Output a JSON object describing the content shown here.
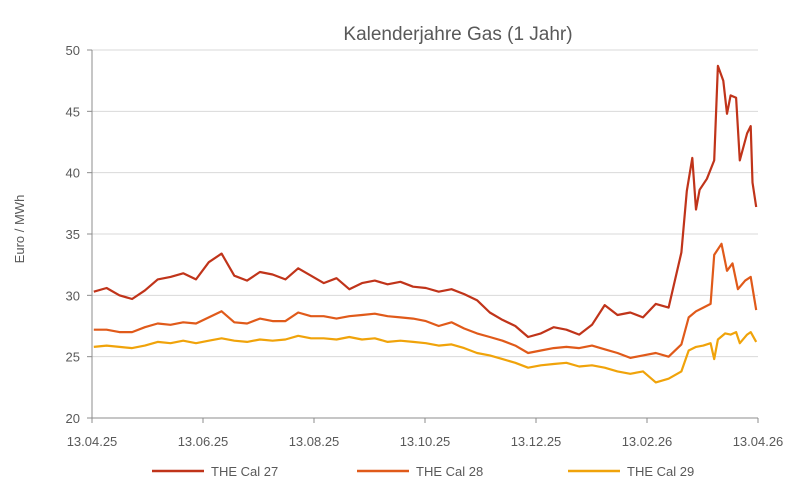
{
  "chart_data": {
    "type": "line",
    "title": "Kalenderjahre Gas (1 Jahr)",
    "xlabel": "",
    "ylabel": "Euro / MWh",
    "ylim": [
      20,
      50
    ],
    "yticks": [
      "20",
      "25",
      "30",
      "35",
      "40",
      "45",
      "50"
    ],
    "xlim": [
      "2025-04-13",
      "2026-04-13"
    ],
    "xticks": [
      "13.04.25",
      "13.06.25",
      "13.08.25",
      "13.10.25",
      "13.12.25",
      "13.02.26",
      "13.04.26"
    ],
    "grid": "horizontal",
    "legend_position": "bottom",
    "series": [
      {
        "name": "THE Cal 27",
        "color": "#c0341a",
        "points": [
          [
            "2025-04-14",
            30.3
          ],
          [
            "2025-04-21",
            30.6
          ],
          [
            "2025-04-28",
            30.0
          ],
          [
            "2025-05-05",
            29.7
          ],
          [
            "2025-05-12",
            30.4
          ],
          [
            "2025-05-19",
            31.3
          ],
          [
            "2025-05-26",
            31.5
          ],
          [
            "2025-06-02",
            31.8
          ],
          [
            "2025-06-09",
            31.3
          ],
          [
            "2025-06-16",
            32.7
          ],
          [
            "2025-06-23",
            33.4
          ],
          [
            "2025-06-30",
            31.6
          ],
          [
            "2025-07-07",
            31.2
          ],
          [
            "2025-07-14",
            31.9
          ],
          [
            "2025-07-21",
            31.7
          ],
          [
            "2025-07-28",
            31.3
          ],
          [
            "2025-08-04",
            32.2
          ],
          [
            "2025-08-11",
            31.6
          ],
          [
            "2025-08-18",
            31.0
          ],
          [
            "2025-08-25",
            31.4
          ],
          [
            "2025-09-01",
            30.5
          ],
          [
            "2025-09-08",
            31.0
          ],
          [
            "2025-09-15",
            31.2
          ],
          [
            "2025-09-22",
            30.9
          ],
          [
            "2025-09-29",
            31.1
          ],
          [
            "2025-10-06",
            30.7
          ],
          [
            "2025-10-13",
            30.6
          ],
          [
            "2025-10-20",
            30.3
          ],
          [
            "2025-10-27",
            30.5
          ],
          [
            "2025-11-03",
            30.1
          ],
          [
            "2025-11-10",
            29.6
          ],
          [
            "2025-11-17",
            28.6
          ],
          [
            "2025-11-24",
            28.0
          ],
          [
            "2025-12-01",
            27.5
          ],
          [
            "2025-12-08",
            26.6
          ],
          [
            "2025-12-15",
            26.9
          ],
          [
            "2025-12-22",
            27.4
          ],
          [
            "2025-12-29",
            27.2
          ],
          [
            "2026-01-05",
            26.8
          ],
          [
            "2026-01-12",
            27.6
          ],
          [
            "2026-01-19",
            29.2
          ],
          [
            "2026-01-26",
            28.4
          ],
          [
            "2026-02-02",
            28.6
          ],
          [
            "2026-02-09",
            28.2
          ],
          [
            "2026-02-16",
            29.3
          ],
          [
            "2026-02-23",
            29.0
          ],
          [
            "2026-03-02",
            33.5
          ],
          [
            "2026-03-05",
            38.5
          ],
          [
            "2026-03-08",
            41.2
          ],
          [
            "2026-03-10",
            37.0
          ],
          [
            "2026-03-12",
            38.6
          ],
          [
            "2026-03-16",
            39.5
          ],
          [
            "2026-03-20",
            41.0
          ],
          [
            "2026-03-22",
            48.7
          ],
          [
            "2026-03-25",
            47.5
          ],
          [
            "2026-03-27",
            44.8
          ],
          [
            "2026-03-29",
            46.3
          ],
          [
            "2026-04-01",
            46.1
          ],
          [
            "2026-04-03",
            41.0
          ],
          [
            "2026-04-07",
            43.2
          ],
          [
            "2026-04-09",
            43.8
          ],
          [
            "2026-04-10",
            39.2
          ],
          [
            "2026-04-12",
            37.2
          ]
        ]
      },
      {
        "name": "THE Cal 28",
        "color": "#e05a1a",
        "points": [
          [
            "2025-04-14",
            27.2
          ],
          [
            "2025-04-21",
            27.2
          ],
          [
            "2025-04-28",
            27.0
          ],
          [
            "2025-05-05",
            27.0
          ],
          [
            "2025-05-12",
            27.4
          ],
          [
            "2025-05-19",
            27.7
          ],
          [
            "2025-05-26",
            27.6
          ],
          [
            "2025-06-02",
            27.8
          ],
          [
            "2025-06-09",
            27.7
          ],
          [
            "2025-06-16",
            28.2
          ],
          [
            "2025-06-23",
            28.7
          ],
          [
            "2025-06-30",
            27.8
          ],
          [
            "2025-07-07",
            27.7
          ],
          [
            "2025-07-14",
            28.1
          ],
          [
            "2025-07-21",
            27.9
          ],
          [
            "2025-07-28",
            27.9
          ],
          [
            "2025-08-04",
            28.6
          ],
          [
            "2025-08-11",
            28.3
          ],
          [
            "2025-08-18",
            28.3
          ],
          [
            "2025-08-25",
            28.1
          ],
          [
            "2025-09-01",
            28.3
          ],
          [
            "2025-09-08",
            28.4
          ],
          [
            "2025-09-15",
            28.5
          ],
          [
            "2025-09-22",
            28.3
          ],
          [
            "2025-09-29",
            28.2
          ],
          [
            "2025-10-06",
            28.1
          ],
          [
            "2025-10-13",
            27.9
          ],
          [
            "2025-10-20",
            27.5
          ],
          [
            "2025-10-27",
            27.8
          ],
          [
            "2025-11-03",
            27.3
          ],
          [
            "2025-11-10",
            26.9
          ],
          [
            "2025-11-17",
            26.6
          ],
          [
            "2025-11-24",
            26.3
          ],
          [
            "2025-12-01",
            25.9
          ],
          [
            "2025-12-08",
            25.3
          ],
          [
            "2025-12-15",
            25.5
          ],
          [
            "2025-12-22",
            25.7
          ],
          [
            "2025-12-29",
            25.8
          ],
          [
            "2026-01-05",
            25.7
          ],
          [
            "2026-01-12",
            25.9
          ],
          [
            "2026-01-19",
            25.6
          ],
          [
            "2026-01-26",
            25.3
          ],
          [
            "2026-02-02",
            24.9
          ],
          [
            "2026-02-09",
            25.1
          ],
          [
            "2026-02-16",
            25.3
          ],
          [
            "2026-02-23",
            25.0
          ],
          [
            "2026-03-02",
            26.0
          ],
          [
            "2026-03-06",
            28.2
          ],
          [
            "2026-03-10",
            28.7
          ],
          [
            "2026-03-14",
            29.0
          ],
          [
            "2026-03-18",
            29.3
          ],
          [
            "2026-03-20",
            33.3
          ],
          [
            "2026-03-24",
            34.2
          ],
          [
            "2026-03-27",
            32.0
          ],
          [
            "2026-03-30",
            32.6
          ],
          [
            "2026-04-02",
            30.5
          ],
          [
            "2026-04-06",
            31.2
          ],
          [
            "2026-04-09",
            31.5
          ],
          [
            "2026-04-12",
            28.8
          ]
        ]
      },
      {
        "name": "THE Cal 29",
        "color": "#f0a30a",
        "points": [
          [
            "2025-04-14",
            25.8
          ],
          [
            "2025-04-21",
            25.9
          ],
          [
            "2025-04-28",
            25.8
          ],
          [
            "2025-05-05",
            25.7
          ],
          [
            "2025-05-12",
            25.9
          ],
          [
            "2025-05-19",
            26.2
          ],
          [
            "2025-05-26",
            26.1
          ],
          [
            "2025-06-02",
            26.3
          ],
          [
            "2025-06-09",
            26.1
          ],
          [
            "2025-06-16",
            26.3
          ],
          [
            "2025-06-23",
            26.5
          ],
          [
            "2025-06-30",
            26.3
          ],
          [
            "2025-07-07",
            26.2
          ],
          [
            "2025-07-14",
            26.4
          ],
          [
            "2025-07-21",
            26.3
          ],
          [
            "2025-07-28",
            26.4
          ],
          [
            "2025-08-04",
            26.7
          ],
          [
            "2025-08-11",
            26.5
          ],
          [
            "2025-08-18",
            26.5
          ],
          [
            "2025-08-25",
            26.4
          ],
          [
            "2025-09-01",
            26.6
          ],
          [
            "2025-09-08",
            26.4
          ],
          [
            "2025-09-15",
            26.5
          ],
          [
            "2025-09-22",
            26.2
          ],
          [
            "2025-09-29",
            26.3
          ],
          [
            "2025-10-06",
            26.2
          ],
          [
            "2025-10-13",
            26.1
          ],
          [
            "2025-10-20",
            25.9
          ],
          [
            "2025-10-27",
            26.0
          ],
          [
            "2025-11-03",
            25.7
          ],
          [
            "2025-11-10",
            25.3
          ],
          [
            "2025-11-17",
            25.1
          ],
          [
            "2025-11-24",
            24.8
          ],
          [
            "2025-12-01",
            24.5
          ],
          [
            "2025-12-08",
            24.1
          ],
          [
            "2025-12-15",
            24.3
          ],
          [
            "2025-12-22",
            24.4
          ],
          [
            "2025-12-29",
            24.5
          ],
          [
            "2026-01-05",
            24.2
          ],
          [
            "2026-01-12",
            24.3
          ],
          [
            "2026-01-19",
            24.1
          ],
          [
            "2026-01-26",
            23.8
          ],
          [
            "2026-02-02",
            23.6
          ],
          [
            "2026-02-09",
            23.8
          ],
          [
            "2026-02-16",
            22.9
          ],
          [
            "2026-02-23",
            23.2
          ],
          [
            "2026-03-02",
            23.8
          ],
          [
            "2026-03-06",
            25.5
          ],
          [
            "2026-03-10",
            25.8
          ],
          [
            "2026-03-14",
            25.9
          ],
          [
            "2026-03-18",
            26.1
          ],
          [
            "2026-03-20",
            24.8
          ],
          [
            "2026-03-22",
            26.4
          ],
          [
            "2026-03-26",
            26.9
          ],
          [
            "2026-03-29",
            26.8
          ],
          [
            "2026-04-01",
            27.0
          ],
          [
            "2026-04-03",
            26.1
          ],
          [
            "2026-04-07",
            26.8
          ],
          [
            "2026-04-09",
            27.0
          ],
          [
            "2026-04-12",
            26.2
          ]
        ]
      }
    ]
  }
}
